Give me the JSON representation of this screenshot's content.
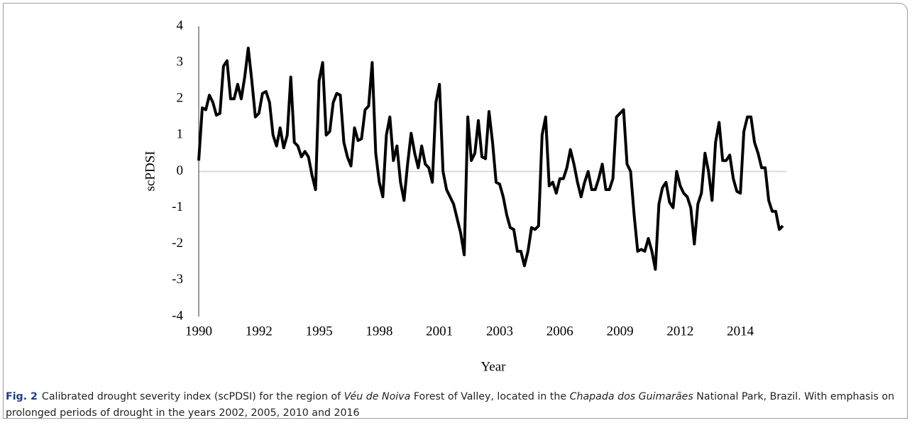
{
  "chart_data": {
    "type": "line",
    "y_label": "scPDSI",
    "x_label": "Year",
    "categories": [
      "1990",
      null,
      null,
      null,
      null,
      null,
      null,
      null,
      null,
      null,
      null,
      null,
      null,
      null,
      null,
      null,
      null,
      "1992",
      null,
      null,
      null,
      null,
      null,
      null,
      null,
      null,
      null,
      null,
      null,
      null,
      null,
      null,
      null,
      null,
      "1995",
      null,
      null,
      null,
      null,
      null,
      null,
      null,
      null,
      null,
      null,
      null,
      null,
      null,
      null,
      null,
      null,
      "1998",
      null,
      null,
      null,
      null,
      null,
      null,
      null,
      null,
      null,
      null,
      null,
      null,
      null,
      null,
      null,
      null,
      "2001",
      null,
      null,
      null,
      null,
      null,
      null,
      null,
      null,
      null,
      null,
      null,
      null,
      null,
      null,
      null,
      null,
      "2003",
      null,
      null,
      null,
      null,
      null,
      null,
      null,
      null,
      null,
      null,
      null,
      null,
      null,
      null,
      null,
      null,
      "2006",
      null,
      null,
      null,
      null,
      null,
      null,
      null,
      null,
      null,
      null,
      null,
      null,
      null,
      null,
      null,
      null,
      "2009",
      null,
      null,
      null,
      null,
      null,
      null,
      null,
      null,
      null,
      null,
      null,
      null,
      null,
      null,
      null,
      null,
      "2012",
      null,
      null,
      null,
      null,
      null,
      null,
      null,
      null,
      null,
      null,
      null,
      null,
      null,
      null,
      null,
      null,
      "2014",
      null,
      null,
      null,
      null,
      null,
      null,
      null,
      null,
      null,
      null,
      null,
      null
    ],
    "values": [
      0.3,
      1.75,
      1.7,
      2.1,
      1.9,
      1.55,
      1.6,
      2.9,
      3.05,
      2.0,
      2.0,
      2.4,
      2.0,
      2.6,
      3.4,
      2.5,
      1.5,
      1.6,
      2.15,
      2.2,
      1.9,
      1.0,
      0.7,
      1.2,
      0.65,
      1.0,
      2.6,
      0.8,
      0.7,
      0.4,
      0.55,
      0.4,
      -0.1,
      -0.5,
      2.5,
      3.0,
      1.0,
      1.1,
      1.9,
      2.15,
      2.1,
      0.8,
      0.4,
      0.15,
      1.2,
      0.85,
      0.9,
      1.7,
      1.8,
      3.0,
      0.5,
      -0.3,
      -0.7,
      1.0,
      1.5,
      0.3,
      0.7,
      -0.3,
      -0.8,
      0.2,
      1.05,
      0.5,
      0.1,
      0.7,
      0.2,
      0.1,
      -0.3,
      1.9,
      2.4,
      0.0,
      -0.5,
      -0.7,
      -0.9,
      -1.3,
      -1.7,
      -2.3,
      1.5,
      0.3,
      0.5,
      1.4,
      0.4,
      0.35,
      1.65,
      0.8,
      -0.3,
      -0.35,
      -0.7,
      -1.2,
      -1.55,
      -1.6,
      -2.2,
      -2.2,
      -2.6,
      -2.2,
      -1.55,
      -1.6,
      -1.5,
      1.0,
      1.5,
      -0.4,
      -0.3,
      -0.6,
      -0.2,
      -0.2,
      0.1,
      0.6,
      0.2,
      -0.3,
      -0.7,
      -0.3,
      0.0,
      -0.5,
      -0.5,
      -0.2,
      0.2,
      -0.5,
      -0.5,
      -0.2,
      1.5,
      1.6,
      1.7,
      0.2,
      0.0,
      -1.2,
      -2.2,
      -2.15,
      -2.2,
      -1.85,
      -2.2,
      -2.7,
      -0.9,
      -0.45,
      -0.3,
      -0.85,
      -1.0,
      0.0,
      -0.4,
      -0.6,
      -0.7,
      -1.0,
      -2.0,
      -0.9,
      -0.6,
      0.5,
      0.0,
      -0.8,
      0.8,
      1.35,
      0.3,
      0.3,
      0.45,
      -0.2,
      -0.55,
      -0.6,
      1.1,
      1.5,
      1.5,
      0.8,
      0.5,
      0.1,
      0.1,
      -0.8,
      -1.1,
      -1.1,
      -1.6,
      -1.5
    ],
    "color": "#000000",
    "ylim": [
      -4,
      4
    ],
    "yticks": [
      -4,
      -3,
      -2,
      -1,
      0,
      1,
      2,
      3,
      4
    ],
    "grid": false
  },
  "caption": {
    "label": "Fig. 2",
    "parts": [
      "Calibrated drought severity index (scPDSI) for the region of ",
      "Véu de Noiva",
      " Forest of Valley, located in the ",
      "Chapada dos Guimarães",
      " National Park, Brazil. With emphasis on prolonged periods of drought in the years 2002, 2005, 2010 and 2016"
    ]
  }
}
